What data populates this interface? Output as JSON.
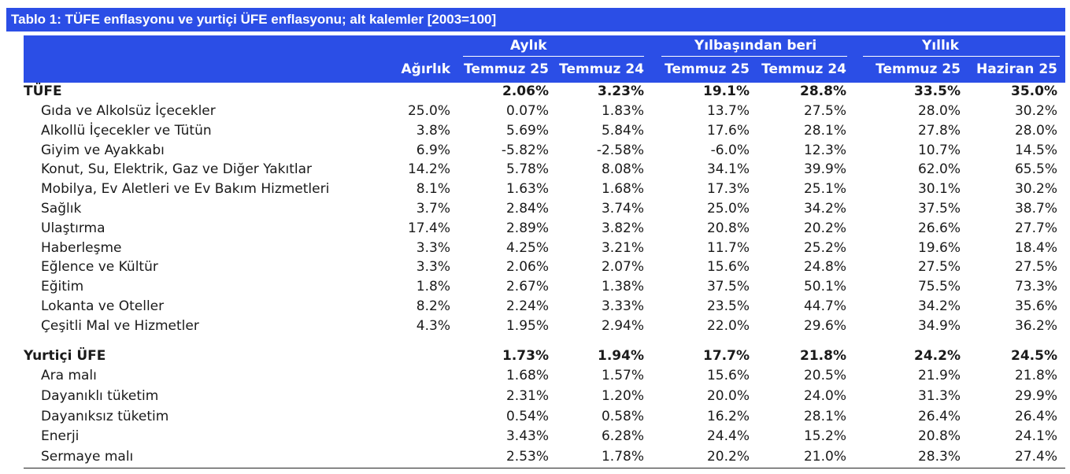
{
  "title": "Tablo 1: TÜFE enflasyonu ve yurtiçi ÜFE enflasyonu; alt kalemler [2003=100]",
  "groups": {
    "monthly": "Aylık",
    "ytd": "Yılbaşından beri",
    "annual": "Yıllık"
  },
  "columns": {
    "weight": "Ağırlık",
    "m1": "Temmuz 25",
    "m2": "Temmuz 24",
    "y1": "Temmuz 25",
    "y2": "Temmuz 24",
    "a1": "Temmuz 25",
    "a2": "Haziran 25"
  },
  "tufe": {
    "header": {
      "label": "TÜFE",
      "weight": "",
      "m1": "2.06%",
      "m2": "3.23%",
      "y1": "19.1%",
      "y2": "28.8%",
      "a1": "33.5%",
      "a2": "35.0%"
    },
    "rows": [
      {
        "label": "Gıda ve Alkolsüz İçecekler",
        "weight": "25.0%",
        "m1": "0.07%",
        "m2": "1.83%",
        "y1": "13.7%",
        "y2": "27.5%",
        "a1": "28.0%",
        "a2": "30.2%"
      },
      {
        "label": "Alkollü İçecekler ve Tütün",
        "weight": "3.8%",
        "m1": "5.69%",
        "m2": "5.84%",
        "y1": "17.6%",
        "y2": "28.1%",
        "a1": "27.8%",
        "a2": "28.0%"
      },
      {
        "label": "Giyim ve Ayakkabı",
        "weight": "6.9%",
        "m1": "-5.82%",
        "m2": "-2.58%",
        "y1": "-6.0%",
        "y2": "12.3%",
        "a1": "10.7%",
        "a2": "14.5%"
      },
      {
        "label": "Konut, Su, Elektrik, Gaz ve Diğer Yakıtlar",
        "weight": "14.2%",
        "m1": "5.78%",
        "m2": "8.08%",
        "y1": "34.1%",
        "y2": "39.9%",
        "a1": "62.0%",
        "a2": "65.5%"
      },
      {
        "label": "Mobilya, Ev Aletleri ve Ev Bakım Hizmetleri",
        "weight": "8.1%",
        "m1": "1.63%",
        "m2": "1.68%",
        "y1": "17.3%",
        "y2": "25.1%",
        "a1": "30.1%",
        "a2": "30.2%"
      },
      {
        "label": "Sağlık",
        "weight": "3.7%",
        "m1": "2.84%",
        "m2": "3.74%",
        "y1": "25.0%",
        "y2": "34.2%",
        "a1": "37.5%",
        "a2": "38.7%"
      },
      {
        "label": "Ulaştırma",
        "weight": "17.4%",
        "m1": "2.89%",
        "m2": "3.82%",
        "y1": "20.8%",
        "y2": "20.2%",
        "a1": "26.6%",
        "a2": "27.7%"
      },
      {
        "label": "Haberleşme",
        "weight": "3.3%",
        "m1": "4.25%",
        "m2": "3.21%",
        "y1": "11.7%",
        "y2": "25.2%",
        "a1": "19.6%",
        "a2": "18.4%"
      },
      {
        "label": "Eğlence ve Kültür",
        "weight": "3.3%",
        "m1": "2.06%",
        "m2": "2.07%",
        "y1": "15.6%",
        "y2": "24.8%",
        "a1": "27.5%",
        "a2": "27.5%"
      },
      {
        "label": "Eğitim",
        "weight": "1.8%",
        "m1": "2.67%",
        "m2": "1.38%",
        "y1": "37.5%",
        "y2": "50.1%",
        "a1": "75.5%",
        "a2": "73.3%"
      },
      {
        "label": "Lokanta ve Oteller",
        "weight": "8.2%",
        "m1": "2.24%",
        "m2": "3.33%",
        "y1": "23.5%",
        "y2": "44.7%",
        "a1": "34.2%",
        "a2": "35.6%"
      },
      {
        "label": "Çeşitli Mal ve Hizmetler",
        "weight": "4.3%",
        "m1": "1.95%",
        "m2": "2.94%",
        "y1": "22.0%",
        "y2": "29.6%",
        "a1": "34.9%",
        "a2": "36.2%"
      }
    ]
  },
  "ufe": {
    "header": {
      "label": "Yurtiçi ÜFE",
      "weight": "",
      "m1": "1.73%",
      "m2": "1.94%",
      "y1": "17.7%",
      "y2": "21.8%",
      "a1": "24.2%",
      "a2": "24.5%"
    },
    "rows": [
      {
        "label": "Ara malı",
        "weight": "",
        "m1": "1.68%",
        "m2": "1.57%",
        "y1": "15.6%",
        "y2": "20.5%",
        "a1": "21.9%",
        "a2": "21.8%"
      },
      {
        "label": "Dayanıklı tüketim",
        "weight": "",
        "m1": "2.31%",
        "m2": "1.20%",
        "y1": "20.0%",
        "y2": "24.0%",
        "a1": "31.3%",
        "a2": "29.9%"
      },
      {
        "label": "Dayanıksız tüketim",
        "weight": "",
        "m1": "0.54%",
        "m2": "0.58%",
        "y1": "16.2%",
        "y2": "28.1%",
        "a1": "26.4%",
        "a2": "26.4%"
      },
      {
        "label": "Enerji",
        "weight": "",
        "m1": "3.43%",
        "m2": "6.28%",
        "y1": "24.4%",
        "y2": "15.2%",
        "a1": "20.8%",
        "a2": "24.1%"
      },
      {
        "label": "Sermaye malı",
        "weight": "",
        "m1": "2.53%",
        "m2": "1.78%",
        "y1": "20.2%",
        "y2": "21.0%",
        "a1": "28.3%",
        "a2": "27.4%"
      }
    ]
  }
}
